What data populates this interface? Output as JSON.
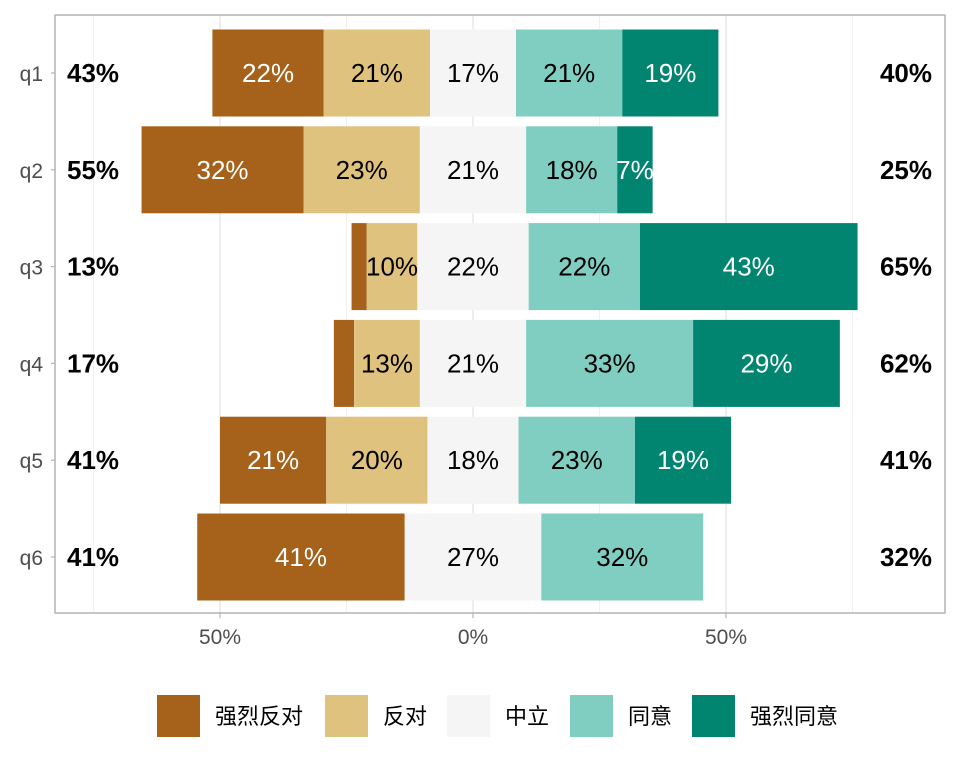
{
  "chart_data": {
    "type": "bar",
    "orientation": "horizontal",
    "stacked": "diverging",
    "questions": [
      "q1",
      "q2",
      "q3",
      "q4",
      "q5",
      "q6"
    ],
    "series": [
      {
        "name": "强烈反对",
        "color": "#a6611a",
        "values": [
          22,
          32,
          3,
          4,
          21,
          41
        ]
      },
      {
        "name": "反对",
        "color": "#dfc27d",
        "values": [
          21,
          23,
          10,
          13,
          20,
          0
        ]
      },
      {
        "name": "中立",
        "color": "#f5f5f5",
        "values": [
          17,
          21,
          22,
          21,
          18,
          27
        ]
      },
      {
        "name": "同意",
        "color": "#80cdc1",
        "values": [
          21,
          18,
          22,
          33,
          23,
          32
        ]
      },
      {
        "name": "强烈同意",
        "color": "#018571",
        "values": [
          19,
          7,
          43,
          29,
          19,
          0
        ]
      }
    ],
    "bar_labels": [
      [
        "22%",
        "21%",
        "17%",
        "21%",
        "19%"
      ],
      [
        "32%",
        "23%",
        "21%",
        "18%",
        "7%"
      ],
      [
        "",
        "10%",
        "22%",
        "22%",
        "43%"
      ],
      [
        "",
        "13%",
        "21%",
        "33%",
        "29%"
      ],
      [
        "21%",
        "20%",
        "18%",
        "23%",
        "19%"
      ],
      [
        "41%",
        "",
        "27%",
        "32%",
        ""
      ]
    ],
    "label_text_color": [
      "#ffffff",
      "#000000",
      "#000000",
      "#000000",
      "#ffffff"
    ],
    "left_totals": [
      "43%",
      "55%",
      "13%",
      "17%",
      "41%",
      "41%"
    ],
    "right_totals": [
      "40%",
      "25%",
      "65%",
      "62%",
      "41%",
      "32%"
    ],
    "x_ticks": [
      {
        "value": -50,
        "label": "50%"
      },
      {
        "value": 0,
        "label": "0%"
      },
      {
        "value": 50,
        "label": "50%"
      }
    ],
    "x_minor": [
      -75,
      -25,
      25,
      75
    ],
    "xlim": [
      -83,
      93
    ],
    "xlabel": "",
    "ylabel": "",
    "grid": true,
    "legend_position": "bottom"
  }
}
